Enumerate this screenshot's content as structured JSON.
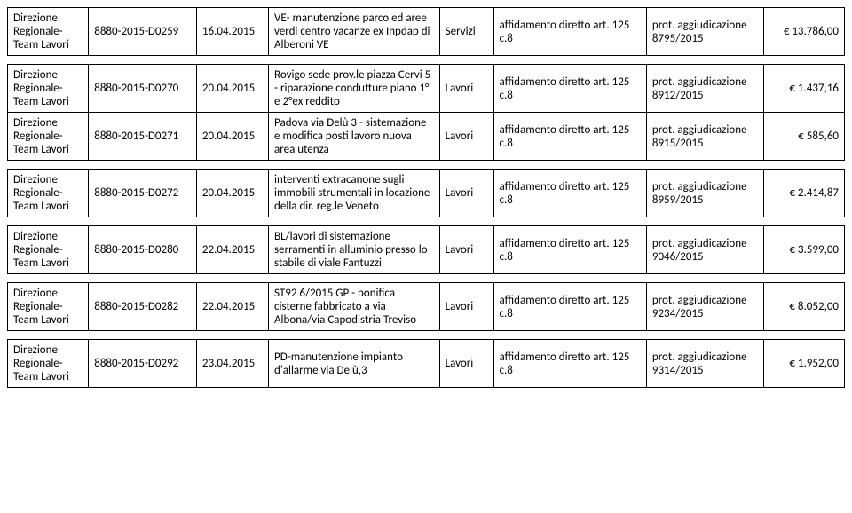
{
  "rows": [
    {
      "dir": "Direzione Regionale-Team Lavori",
      "code": "8880-2015-D0259",
      "date": "16.04.2015",
      "desc": "VE- manutenzione parco ed aree verdi centro vacanze ex Inpdap di Alberoni VE",
      "type": "Servizi",
      "law": "affidamento diretto art. 125 c.8",
      "prot": "prot. aggiudicazione 8795/2015",
      "amt": "€ 13.786,00"
    },
    {
      "gap": true
    },
    {
      "dir": "Direzione Regionale-Team Lavori",
      "code": "8880-2015-D0270",
      "date": "20.04.2015",
      "desc": "Rovigo sede prov.le piazza Cervi 5 - riparazione condutture piano 1° e 2°ex reddito",
      "type": "Lavori",
      "law": "affidamento diretto art. 125 c.8",
      "prot": "prot. aggiudicazione 8912/2015",
      "amt": "€ 1.437,16"
    },
    {
      "dir": "Direzione Regionale-Team Lavori",
      "code": "8880-2015-D0271",
      "date": "20.04.2015",
      "desc": "Padova via Delù 3 - sistemazione e modifica posti lavoro nuova area utenza",
      "type": "Lavori",
      "law": "affidamento diretto art. 125 c.8",
      "prot": "prot. aggiudicazione 8915/2015",
      "amt": "€ 585,60"
    },
    {
      "gap": true
    },
    {
      "dir": "Direzione Regionale-Team Lavori",
      "code": "8880-2015-D0272",
      "date": "20.04.2015",
      "desc": "interventi extracanone sugli immobili strumentali in locazione della dir. reg.le Veneto",
      "type": "Lavori",
      "law": "affidamento diretto art. 125 c.8",
      "prot": "prot. aggiudicazione 8959/2015",
      "amt": "€ 2.414,87"
    },
    {
      "gap": true
    },
    {
      "dir": "Direzione Regionale-Team Lavori",
      "code": "8880-2015-D0280",
      "date": "22.04.2015",
      "desc": "BL/lavori di sistemazione serramenti in alluminio presso lo stabile di viale Fantuzzi",
      "type": "Lavori",
      "law": "affidamento diretto art. 125 c.8",
      "prot": "prot. aggiudicazione 9046/2015",
      "amt": "€ 3.599,00"
    },
    {
      "gap": true
    },
    {
      "dir": "Direzione Regionale-Team Lavori",
      "code": "8880-2015-D0282",
      "date": "22.04.2015",
      "desc": "ST92 6/2015 GP - bonifica cisterne fabbricato a via Albona/via Capodistria Treviso",
      "type": "Lavori",
      "law": "affidamento diretto art. 125 c.8",
      "prot": "prot. aggiudicazione 9234/2015",
      "amt": "€ 8.052,00"
    },
    {
      "gap": true
    },
    {
      "dir": "Direzione Regionale-Team Lavori",
      "code": "8880-2015-D0292",
      "date": "23.04.2015",
      "desc": "PD-manutenzione impianto d'allarme via Delù,3",
      "type": "Lavori",
      "law": "affidamento diretto art. 125 c.8",
      "prot": "prot. aggiudicazione 9314/2015",
      "amt": "€ 1.952,00"
    }
  ]
}
